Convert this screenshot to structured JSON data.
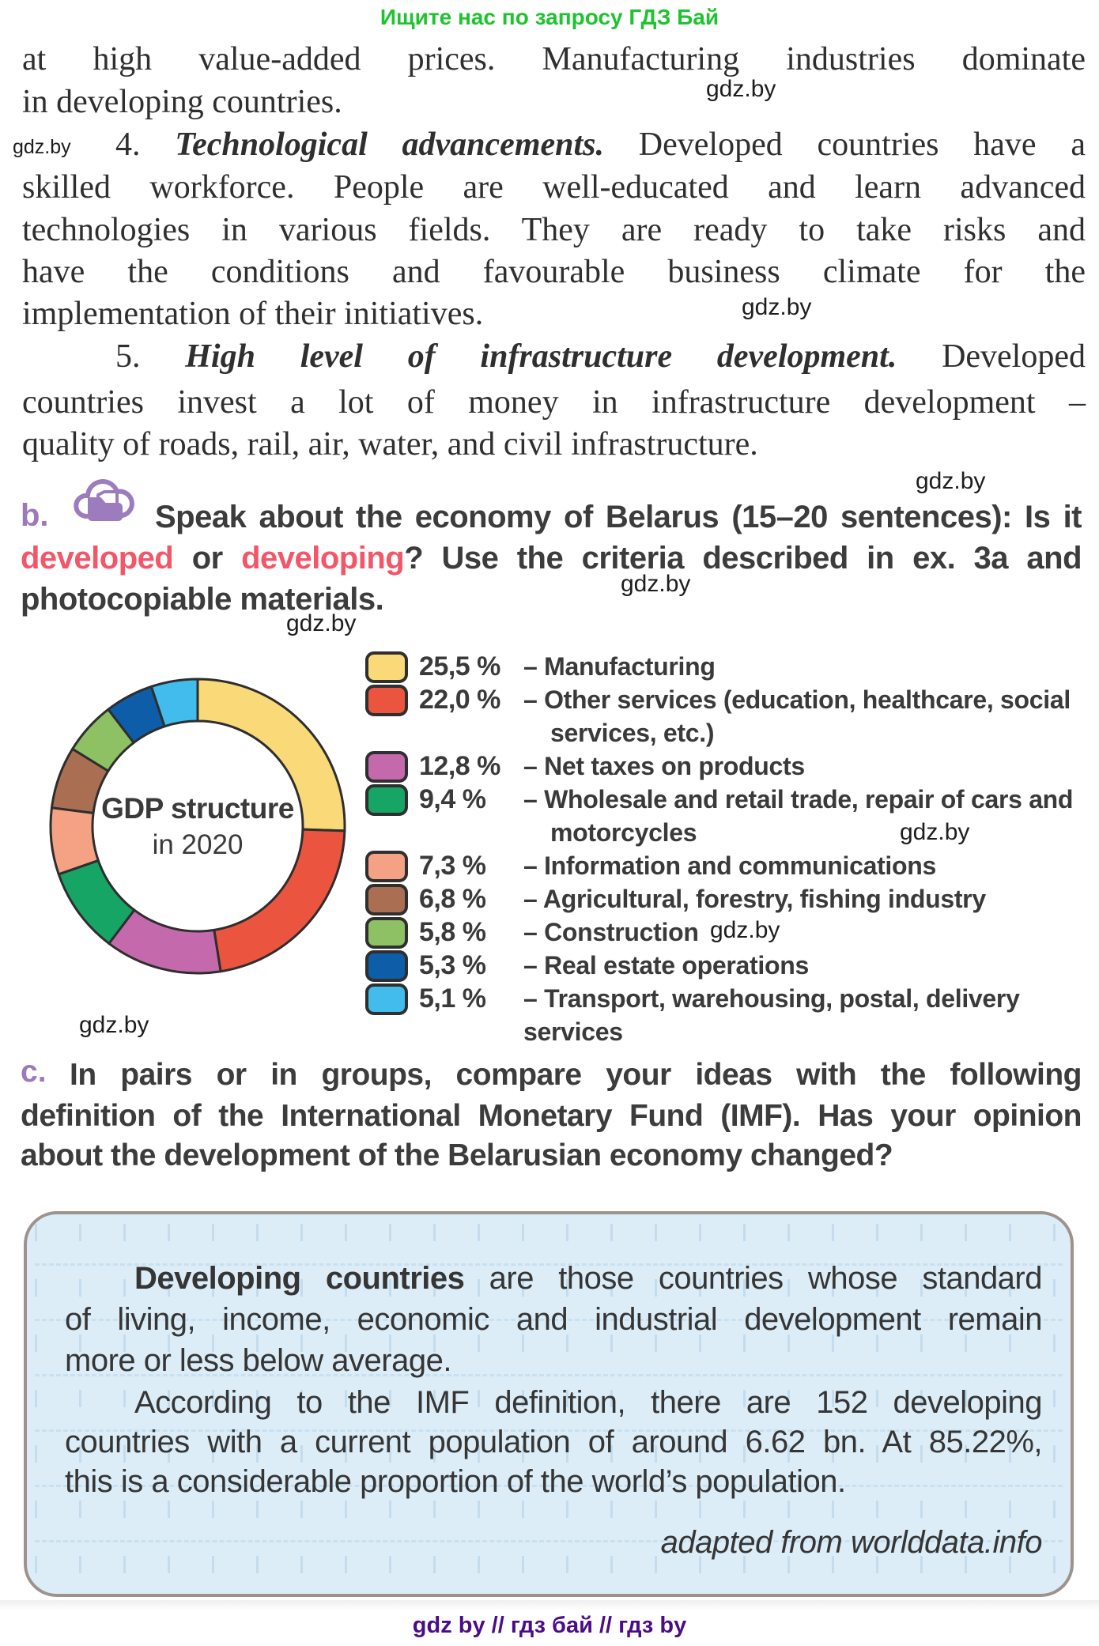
{
  "watermark": "gdz.by",
  "promo_header": "Ищите нас по запросу ГДЗ Бай",
  "footer_text": "gdz by  //  гдз бай  //  гдз by",
  "body": {
    "l1": "at high value-added prices. Manufacturing industries dominate",
    "l2": "in developing countries.",
    "l3_num": "4. ",
    "l3_title": "Technological advancements.",
    "l3_rest": " Developed countries have a",
    "l4": "skilled workforce. People are well-educated and learn advanced",
    "l5": "technologies in various fields. They are ready to take risks and",
    "l6": "have the conditions and favourable business climate for the",
    "l7": "implementation of their initiatives.",
    "l8_num": "5. ",
    "l8_title": "High level of infrastructure development.",
    "l8_rest": " Developed",
    "l9": "countries invest a lot of money in infrastructure development –",
    "l10": "quality of roads, rail, air, water, and civil infrastructure."
  },
  "task_b": {
    "label": "b.",
    "icon": "cloud-folder-icon",
    "l1": "Speak about the economy of Belarus (15–20 sentences): Is it",
    "l2_word1": "developed",
    "l2_mid": " or ",
    "l2_word2": "developing",
    "l2_rest": "? Use the criteria described in ex. 3a and",
    "l3": "photocopiable materials."
  },
  "chart_data": {
    "type": "pie",
    "donut": true,
    "title": "GDP structure",
    "subtitle": "in 2020",
    "legend_position": "right",
    "separator": "–",
    "segments": [
      {
        "value": 25.5,
        "display": "25,5 %",
        "color": "#F9D978",
        "label": "Manufacturing",
        "legend_lines": [
          "Manufacturing"
        ]
      },
      {
        "value": 22.0,
        "display": "22,0 %",
        "color": "#EB5540",
        "label": "Other services (education, healthcare, social services, etc.)",
        "legend_lines": [
          "Other services (education, healthcare, social",
          "services, etc.)"
        ]
      },
      {
        "value": 12.8,
        "display": "12,8 %",
        "color": "#C569AD",
        "label": "Net taxes on products",
        "legend_lines": [
          "Net taxes on products"
        ]
      },
      {
        "value": 9.4,
        "display": "9,4 %",
        "color": "#16A564",
        "label": "Wholesale and retail trade, repair of cars and motorcycles",
        "legend_lines": [
          "Wholesale and retail trade, repair of cars and",
          "motorcycles"
        ]
      },
      {
        "value": 7.3,
        "display": "7,3 %",
        "color": "#F5A184",
        "label": "Information and communications",
        "legend_lines": [
          "Information and communications"
        ]
      },
      {
        "value": 6.8,
        "display": "6,8 %",
        "color": "#AA6F52",
        "label": "Agricultural, forestry, fishing industry",
        "legend_lines": [
          "Agricultural, forestry, fishing industry"
        ]
      },
      {
        "value": 5.8,
        "display": "5,8 %",
        "color": "#8DC163",
        "label": "Construction",
        "legend_lines": [
          "Construction"
        ]
      },
      {
        "value": 5.3,
        "display": "5,3 %",
        "color": "#0D5DA9",
        "label": "Real estate operations",
        "legend_lines": [
          "Real estate operations"
        ]
      },
      {
        "value": 5.1,
        "display": "5,1 %",
        "color": "#41BCEC",
        "label": "Transport, warehousing, postal, delivery services",
        "legend_lines": [
          "Transport, warehousing, postal, delivery services"
        ]
      }
    ]
  },
  "task_c": {
    "label": "c.",
    "l1": "In pairs or in groups, compare your ideas with the following",
    "l2": "definition of the International Monetary Fund (IMF). Has your opinion",
    "l3": "about the development of the Belarusian economy changed?"
  },
  "infobox": {
    "p1_lead": "Developing countries",
    "p1_l1_rest": " are those countries whose standard",
    "p1_l2": "of living, income, economic and industrial development remain",
    "p1_l3": "more or less below average.",
    "p2_l1": "According to the IMF definition, there are 152 developing",
    "p2_l2": "countries with a current population of around 6.62 bn. At 85.22%,",
    "p2_l3": "this is a considerable proportion of the world’s population.",
    "attribution": "adapted from worlddata.info"
  }
}
